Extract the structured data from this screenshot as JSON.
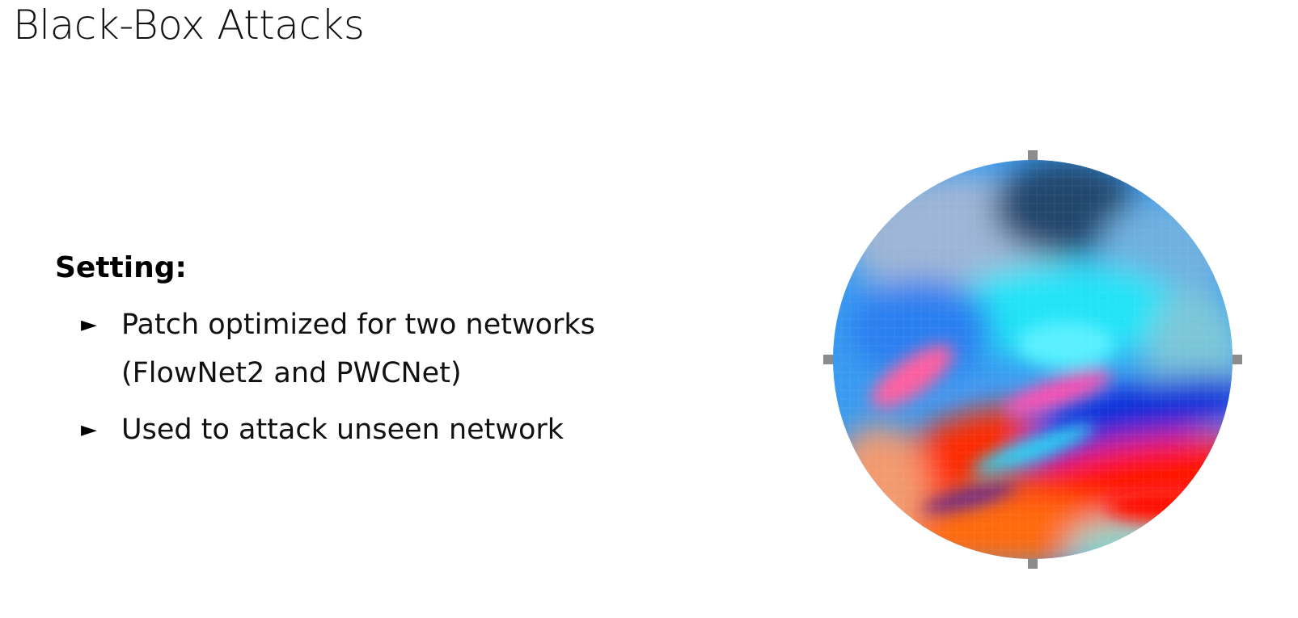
{
  "slide": {
    "title": "Black-Box Attacks",
    "heading": "Setting:",
    "bullet_marker": "►",
    "bullets": [
      {
        "lines": [
          "Patch optimized for two networks",
          "(FlowNet2 and PWCNet)"
        ]
      },
      {
        "lines": [
          "Used to attack unseen network"
        ]
      }
    ]
  },
  "patch_image": {
    "icon": "adversarial-patch-image",
    "colors": {
      "cyan": "#1fd8f5",
      "blue": "#1c8ef2",
      "deep_blue": "#0a1fd8",
      "red": "#ff1400",
      "orange": "#ff7a10",
      "pink": "#ff5fa0",
      "gray": "#8c8c8c"
    }
  }
}
